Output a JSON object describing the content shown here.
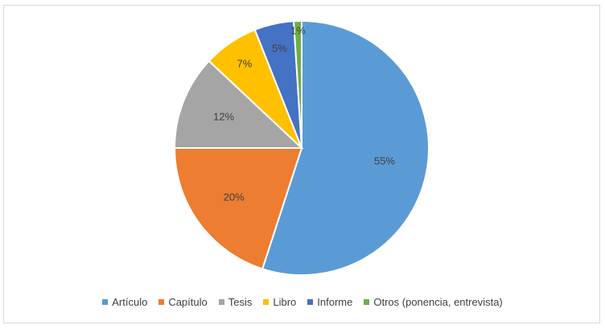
{
  "chart_data": {
    "type": "pie",
    "categories": [
      "Artículo",
      "Capítulo",
      "Tesis",
      "Libro",
      "Informe",
      "Otros (ponencia, entrevista)"
    ],
    "values": [
      55,
      20,
      12,
      7,
      5,
      1
    ],
    "labels": [
      "55%",
      "20%",
      "12%",
      "7%",
      "5%",
      "1%"
    ],
    "colors": [
      "#5b9bd5",
      "#ed7d31",
      "#a5a5a5",
      "#ffc000",
      "#4472c4",
      "#70ad47"
    ],
    "legend": "bottom",
    "start_angle_deg": 0,
    "direction": "clockwise"
  }
}
